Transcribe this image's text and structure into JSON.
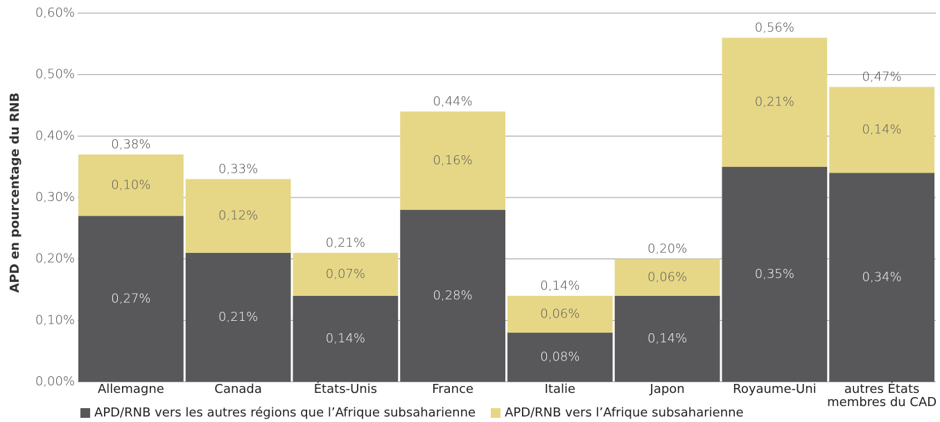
{
  "chart_data": {
    "type": "stacked_bar",
    "ylabel": "APD en pourcentage du RNB",
    "categories": [
      "Allemagne",
      "Canada",
      "États-Unis",
      "France",
      "Italie",
      "Japon",
      "Royaume-Uni",
      "autres États membres du CAD"
    ],
    "series": [
      {
        "name": "APD/RNB vers les autres régions que l’Afrique subsaharienne",
        "color": "#58585a",
        "values": [
          0.27,
          0.21,
          0.14,
          0.28,
          0.08,
          0.14,
          0.35,
          0.34
        ],
        "value_labels": [
          "0,27%",
          "0,21%",
          "0,14%",
          "0,28%",
          "0,08%",
          "0,14%",
          "0,35%",
          "0,34%"
        ]
      },
      {
        "name": "APD/RNB vers l’Afrique subsaharienne",
        "color": "#e6d787",
        "values": [
          0.1,
          0.12,
          0.07,
          0.16,
          0.06,
          0.06,
          0.21,
          0.14
        ],
        "value_labels": [
          "0,10%",
          "0,12%",
          "0,07%",
          "0,16%",
          "0,06%",
          "0,06%",
          "0,21%",
          "0,14%"
        ]
      }
    ],
    "totals": {
      "values": [
        0.38,
        0.33,
        0.21,
        0.44,
        0.14,
        0.2,
        0.56,
        0.47
      ],
      "value_labels": [
        "0,38%",
        "0,33%",
        "0,21%",
        "0,44%",
        "0,14%",
        "0,20%",
        "0,56%",
        "0,47%"
      ]
    },
    "ylim": [
      0,
      0.6
    ],
    "yticks": [
      {
        "value": 0,
        "label": "0,00%"
      },
      {
        "value": 0.1,
        "label": "0,10%"
      },
      {
        "value": 0.2,
        "label": "0,20%"
      },
      {
        "value": 0.3,
        "label": "0,30%"
      },
      {
        "value": 0.4,
        "label": "0,40%"
      },
      {
        "value": 0.5,
        "label": "0,50%"
      },
      {
        "value": 0.6,
        "label": "0,60%"
      }
    ],
    "grid": true,
    "legend": "bottom"
  }
}
